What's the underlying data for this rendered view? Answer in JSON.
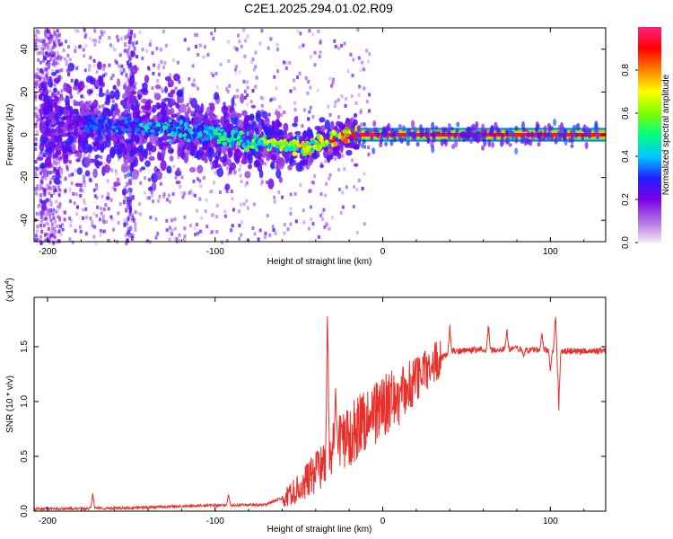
{
  "title": "C2E1.2025.294.01.02.R09",
  "chart_data": [
    {
      "type": "heatmap",
      "name": "spectrogram",
      "xlabel": "Height of straight line (km)",
      "ylabel": "Frequency (Hz)",
      "xlim": [
        -208,
        133
      ],
      "ylim": [
        -50,
        50
      ],
      "xticks": [
        -200,
        -100,
        0,
        100
      ],
      "yticks": [
        -40,
        -20,
        0,
        20,
        40
      ],
      "colorbar": {
        "label": "Normalized spectral amplitude",
        "range": [
          0,
          1
        ],
        "ticks": [
          0.0,
          0.2,
          0.4,
          0.6,
          0.8
        ],
        "colors": [
          "#f3e6f7",
          "#b070e0",
          "#7a00e6",
          "#2020ff",
          "#00c8ff",
          "#00ff80",
          "#80ff00",
          "#ffff00",
          "#ff8000",
          "#ff0000",
          "#ff2080"
        ]
      },
      "ridge": {
        "x": [
          -200,
          -180,
          -160,
          -140,
          -120,
          -100,
          -80,
          -60,
          -45,
          -35,
          -25,
          -15,
          0,
          130
        ],
        "y": [
          6,
          5,
          4,
          4,
          2,
          0,
          -3,
          -5,
          -7,
          -3,
          -1,
          0,
          0,
          0
        ],
        "strength": [
          0.2,
          0.3,
          0.35,
          0.45,
          0.45,
          0.5,
          0.55,
          0.65,
          0.7,
          0.75,
          0.85,
          0.95,
          0.95,
          0.95
        ]
      }
    },
    {
      "type": "line",
      "name": "snr",
      "xlabel": "Height of straight line (km)",
      "ylabel": "SNR (10 * v/v)",
      "yscale_label": "(x10",
      "yscale_exp": "4",
      "yscale_close": ")",
      "xlim": [
        -208,
        133
      ],
      "ylim": [
        0,
        1.95
      ],
      "xticks": [
        -200,
        -100,
        0,
        100
      ],
      "yticks": [
        0.0,
        0.5,
        1.0,
        1.5
      ],
      "color": "#e8302a",
      "baseline": {
        "x": [
          -208,
          -150,
          -110,
          -70,
          -55,
          -40,
          -30,
          -20,
          -10,
          0,
          10,
          20,
          30,
          40,
          50,
          60,
          70,
          80,
          90,
          100,
          110,
          133
        ],
        "y": [
          0.02,
          0.03,
          0.05,
          0.06,
          0.15,
          0.35,
          0.55,
          0.7,
          0.85,
          0.95,
          1.05,
          1.2,
          1.35,
          1.45,
          1.47,
          1.47,
          1.47,
          1.48,
          1.47,
          1.47,
          1.46,
          1.46
        ]
      },
      "spikes": [
        {
          "x": -173,
          "y": 0.18
        },
        {
          "x": -92,
          "y": 0.17
        },
        {
          "x": -33,
          "y": 1.93
        },
        {
          "x": -28,
          "y": 1.2
        },
        {
          "x": 40,
          "y": 1.72
        },
        {
          "x": 63,
          "y": 1.75
        },
        {
          "x": 74,
          "y": 1.7
        },
        {
          "x": 84,
          "y": 1.4
        },
        {
          "x": 95,
          "y": 1.65
        },
        {
          "x": 100,
          "y": 1.25
        },
        {
          "x": 103,
          "y": 1.85
        },
        {
          "x": 105,
          "y": 0.85
        }
      ]
    }
  ]
}
